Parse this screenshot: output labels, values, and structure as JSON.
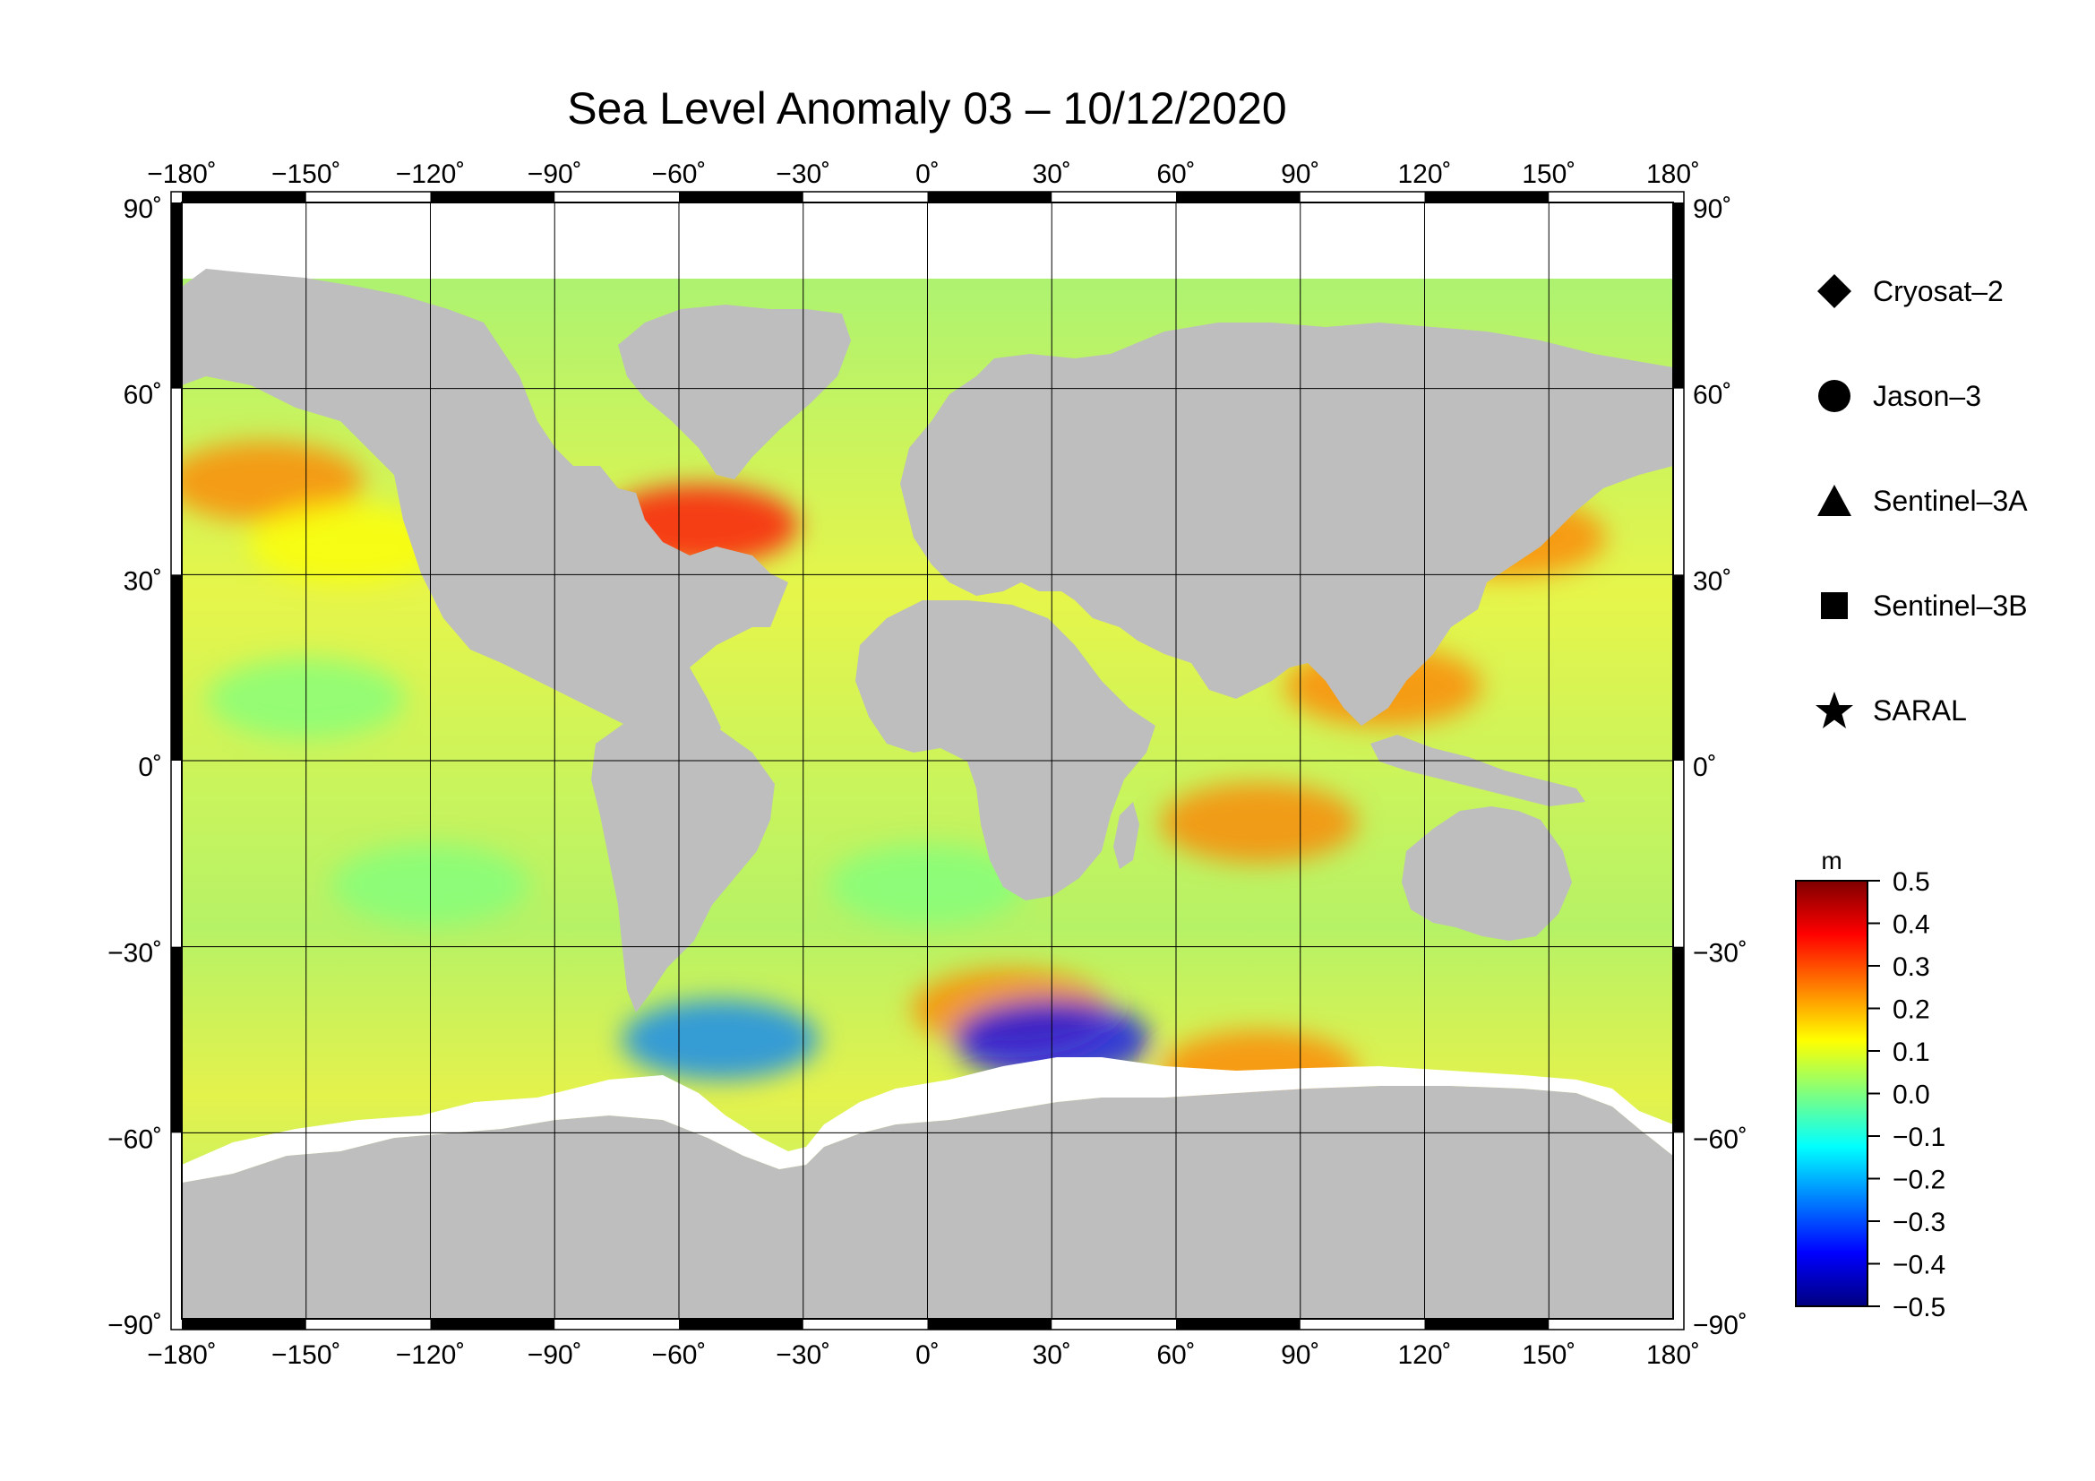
{
  "title": "Sea Level Anomaly 03 – 10/12/2020",
  "map": {
    "lon_ticks": [
      -180,
      -150,
      -120,
      -90,
      -60,
      -30,
      0,
      30,
      60,
      90,
      120,
      150,
      180
    ],
    "lon_labels": [
      "−180˚",
      "−150˚",
      "−120˚",
      "−90˚",
      "−60˚",
      "−30˚",
      "0˚",
      "30˚",
      "60˚",
      "90˚",
      "120˚",
      "150˚",
      "180˚"
    ],
    "lat_ticks": [
      90,
      60,
      30,
      0,
      -30,
      -60,
      -90
    ],
    "lat_labels": [
      "90˚",
      "60˚",
      "30˚",
      "0˚",
      "−30˚",
      "−60˚",
      "−90˚"
    ],
    "lon_range": [
      -180,
      180
    ],
    "lat_range": [
      -90,
      90
    ],
    "projection": "cylindrical",
    "gridlines": true,
    "land_color": "#bebebe",
    "ice_color": "#ffffff"
  },
  "colorbar": {
    "unit": "m",
    "range": [
      -0.5,
      0.5
    ],
    "tick_values": [
      0.5,
      0.4,
      0.3,
      0.2,
      0.1,
      0.0,
      -0.1,
      -0.2,
      -0.3,
      -0.4,
      -0.5
    ],
    "tick_labels": [
      "0.5",
      "0.4",
      "0.3",
      "0.2",
      "0.1",
      "0.0",
      "−0.1",
      "−0.2",
      "−0.3",
      "−0.4",
      "−0.5"
    ],
    "colormap": [
      "#00007f",
      "#0000ff",
      "#007fff",
      "#00ffff",
      "#7fff7f",
      "#ffff00",
      "#ff7f00",
      "#ff0000",
      "#7f0000"
    ]
  },
  "legend": {
    "items": [
      {
        "label": "Cryosat–2",
        "icon": "diamond-icon"
      },
      {
        "label": "Jason–3",
        "icon": "circle-icon"
      },
      {
        "label": "Sentinel–3A",
        "icon": "triangle-icon"
      },
      {
        "label": "Sentinel–3B",
        "icon": "square-icon"
      },
      {
        "label": "SARAL",
        "icon": "star-icon"
      }
    ]
  },
  "anomaly_regions": [
    {
      "lon": -160,
      "lat": 45,
      "value": 0.2
    },
    {
      "lon": -140,
      "lat": 35,
      "value": 0.15
    },
    {
      "lon": -55,
      "lat": 38,
      "value": 0.35
    },
    {
      "lon": 140,
      "lat": 36,
      "value": 0.3
    },
    {
      "lon": 110,
      "lat": 12,
      "value": 0.3
    },
    {
      "lon": 80,
      "lat": -10,
      "value": 0.3
    },
    {
      "lon": 20,
      "lat": -40,
      "value": 0.25
    },
    {
      "lon": -50,
      "lat": -45,
      "value": -0.3
    },
    {
      "lon": 30,
      "lat": -45,
      "value": -0.35
    },
    {
      "lon": -150,
      "lat": 10,
      "value": -0.05
    },
    {
      "lon": -120,
      "lat": -20,
      "value": -0.05
    },
    {
      "lon": 0,
      "lat": -20,
      "value": 0.05
    },
    {
      "lon": 80,
      "lat": -50,
      "value": 0.2
    }
  ]
}
